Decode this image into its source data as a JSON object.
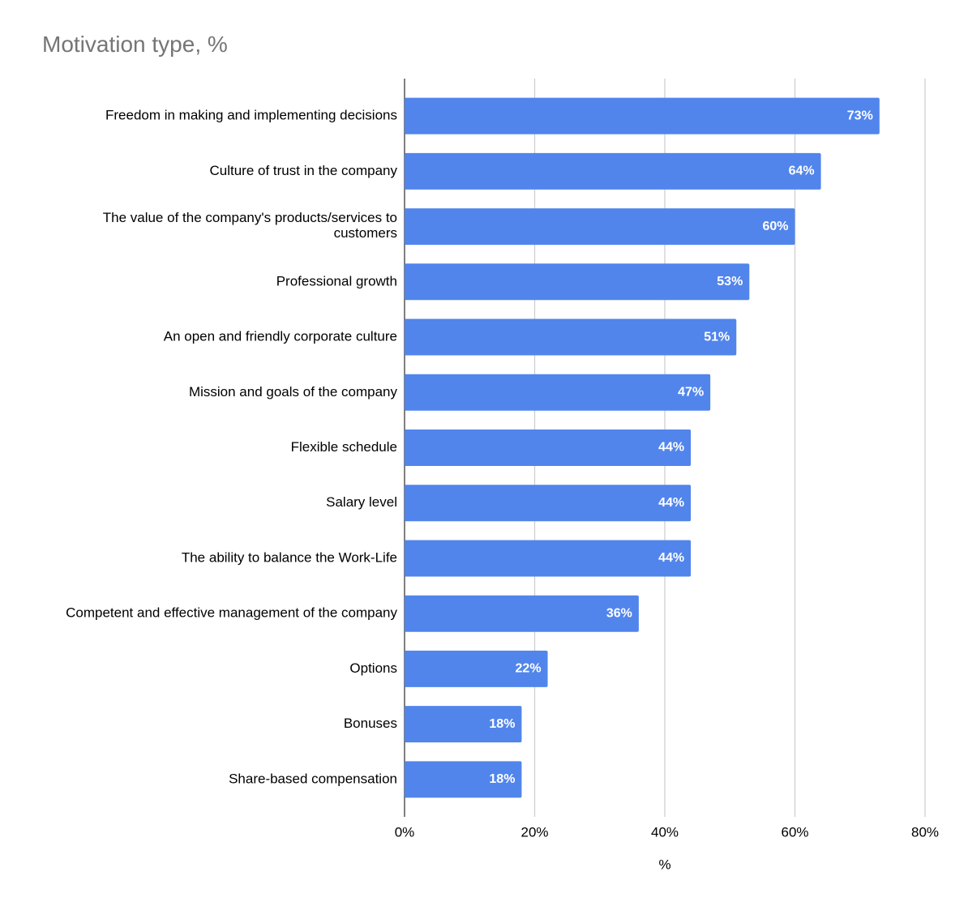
{
  "chart_data": {
    "type": "bar",
    "orientation": "horizontal",
    "title": "Motivation type, %",
    "x_label": "%",
    "categories": [
      "Freedom in making and implementing decisions",
      "Culture of trust in the company",
      "The value of the company's products/services to customers",
      "Professional growth",
      "An open and friendly corporate culture",
      "Mission and goals of the company",
      "Flexible schedule",
      "Salary level",
      "The ability to balance the Work-Life",
      "Competent and effective management of the company",
      "Options",
      "Bonuses",
      "Share-based compensation"
    ],
    "values": [
      73,
      64,
      60,
      53,
      51,
      47,
      44,
      44,
      44,
      36,
      22,
      18,
      18
    ],
    "value_labels": [
      "73%",
      "64%",
      "60%",
      "53%",
      "51%",
      "47%",
      "44%",
      "44%",
      "44%",
      "36%",
      "22%",
      "18%",
      "18%"
    ],
    "color": "#5185ec",
    "xlim": [
      0,
      80
    ],
    "xticks": [
      {
        "value": 0,
        "label": "0%"
      },
      {
        "value": 20,
        "label": "20%"
      },
      {
        "value": 40,
        "label": "40%"
      },
      {
        "value": 60,
        "label": "60%"
      },
      {
        "value": 80,
        "label": "80%"
      }
    ],
    "grid": true
  }
}
